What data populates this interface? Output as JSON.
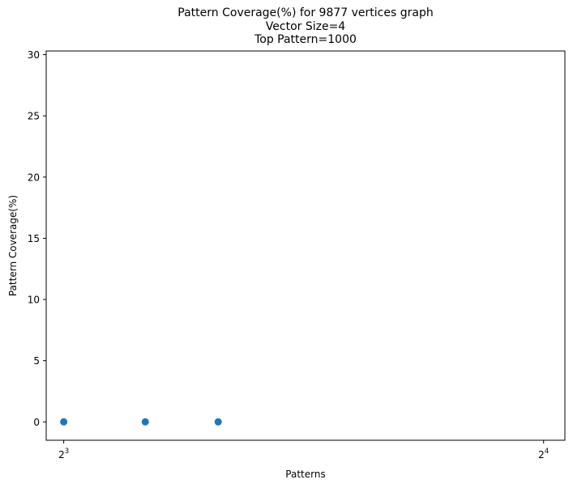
{
  "chart_data": {
    "type": "scatter",
    "title": "Pattern Coverage(%) for 9877 vertices graph",
    "subtitle_lines": [
      "Vector Size=4",
      "Top Pattern=1000"
    ],
    "xlabel": "Patterns",
    "ylabel": "Pattern Coverage(%)",
    "x_scale": "log2",
    "xlim": [
      7.8,
      16.5
    ],
    "ylim": [
      -1.5,
      30.3
    ],
    "x_ticks": [
      {
        "value": 8,
        "base": "2",
        "exponent": "3"
      },
      {
        "value": 16,
        "base": "2",
        "exponent": "4"
      }
    ],
    "y_ticks": [
      0,
      5,
      10,
      15,
      20,
      25,
      30
    ],
    "grid": false,
    "series": [
      {
        "color": "#1f77b4",
        "x": [
          8,
          9,
          10
        ],
        "y": [
          0,
          0,
          0
        ]
      }
    ]
  }
}
